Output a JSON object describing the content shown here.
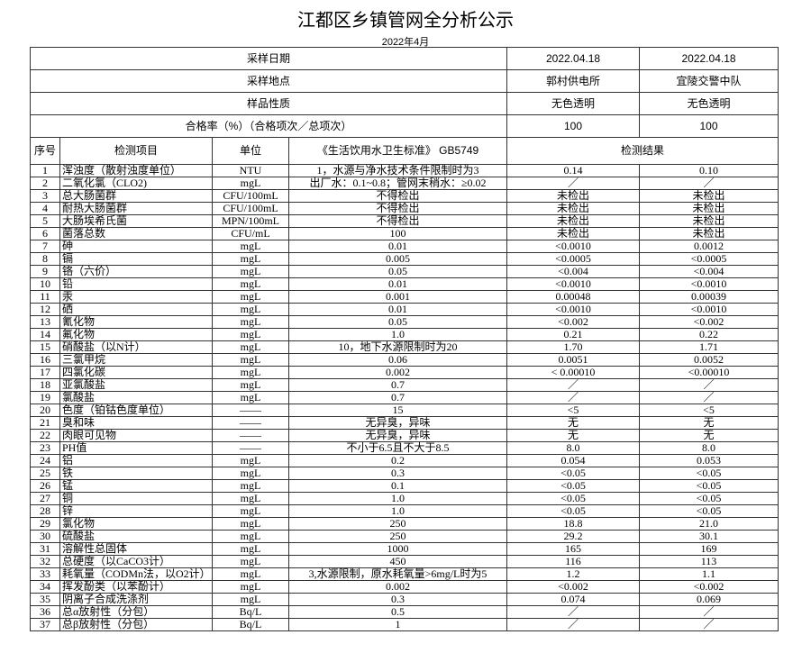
{
  "title": "江都区乡镇管网全分析公示",
  "subtitle": "2022年4月",
  "meta_rows": [
    {
      "label": "采样日期",
      "values": [
        "2022.04.18",
        "2022.04.18"
      ]
    },
    {
      "label": "采样地点",
      "values": [
        "郭村供电所",
        "宜陵交警中队"
      ]
    },
    {
      "label": "样品性质",
      "values": [
        "无色透明",
        "无色透明"
      ]
    },
    {
      "label": "合格率（%）（合格项次／总项次）",
      "values": [
        "100",
        "100"
      ]
    }
  ],
  "columns": {
    "seq": "序号",
    "item": "检测项目",
    "unit": "单位",
    "standard": "《生活饮用水卫生标准》 GB5749",
    "results": "检测结果"
  },
  "rows": [
    [
      "1",
      "浑浊度（散射浊度单位）",
      "NTU",
      "1，水源与净水技术条件限制时为3",
      "0.14",
      "0.10"
    ],
    [
      "2",
      "二氧化氯（CLO2)",
      "mgL",
      "出厂水：0.1~0.8；管网末稍水：≥0.02",
      "／",
      "／"
    ],
    [
      "3",
      "总大肠菌群",
      "CFU/100mL",
      "不得检出",
      "未检出",
      "未检出"
    ],
    [
      "4",
      "耐热大肠菌群",
      "CFU/100mL",
      "不得检出",
      "未检出",
      "未检出"
    ],
    [
      "5",
      "大肠埃希氏菌",
      "MPN/100mL",
      "不得检出",
      "未检出",
      "未检出"
    ],
    [
      "6",
      "菌落总数",
      "CFU/mL",
      "100",
      "未检出",
      "未检出"
    ],
    [
      "7",
      "砷",
      "mgL",
      "0.01",
      "<0.0010",
      "0.0012"
    ],
    [
      "8",
      "镉",
      "mgL",
      "0.005",
      "<0.0005",
      "<0.0005"
    ],
    [
      "9",
      "铬（六价）",
      "mgL",
      "0.05",
      "<0.004",
      "<0.004"
    ],
    [
      "10",
      "铅",
      "mgL",
      "0.01",
      "<0.0010",
      "<0.0010"
    ],
    [
      "11",
      "汞",
      "mgL",
      "0.001",
      "0.00048",
      "0.00039"
    ],
    [
      "12",
      "硒",
      "mgL",
      "0.01",
      "<0.0010",
      "<0.0010"
    ],
    [
      "13",
      "氰化物",
      "mgL",
      "0.05",
      "<0.002",
      "<0.002"
    ],
    [
      "14",
      "氟化物",
      "mgL",
      "1.0",
      "0.21",
      "0.22"
    ],
    [
      "15",
      "硝酸盐（以N计）",
      "mgL",
      "10，地下水源限制时为20",
      "1.70",
      "1.71"
    ],
    [
      "16",
      "三氯甲烷",
      "mgL",
      "0.06",
      "0.0051",
      "0.0052"
    ],
    [
      "17",
      "四氯化碳",
      "mgL",
      "0.002",
      "< 0.00010",
      "<0.00010"
    ],
    [
      "18",
      "亚氯酸盐",
      "mgL",
      "0.7",
      "／",
      "／"
    ],
    [
      "19",
      "氯酸盐",
      "mgL",
      "0.7",
      "／",
      "／"
    ],
    [
      "20",
      "色度（铂钴色度单位）",
      "——",
      "15",
      "<5",
      "<5"
    ],
    [
      "21",
      "臭和味",
      "——",
      "无异臭，异味",
      "无",
      "无"
    ],
    [
      "22",
      "肉眼可见物",
      "——",
      "无异臭，异味",
      "无",
      "无"
    ],
    [
      "23",
      "PH值",
      "——",
      "不小于6.5且不大于8.5",
      "8.0",
      "8.0"
    ],
    [
      "24",
      "铝",
      "mgL",
      "0.2",
      "0.054",
      "0.053"
    ],
    [
      "25",
      "铁",
      "mgL",
      "0.3",
      "<0.05",
      "<0.05"
    ],
    [
      "26",
      "锰",
      "mgL",
      "0.1",
      "<0.05",
      "<0.05"
    ],
    [
      "27",
      "铜",
      "mgL",
      "1.0",
      "<0.05",
      "<0.05"
    ],
    [
      "28",
      "锌",
      "mgL",
      "1.0",
      "<0.05",
      "<0.05"
    ],
    [
      "29",
      "氯化物",
      "mgL",
      "250",
      "18.8",
      "21.0"
    ],
    [
      "30",
      "硫酸盐",
      "mgL",
      "250",
      "29.2",
      "30.1"
    ],
    [
      "31",
      "溶解性总固体",
      "mgL",
      "1000",
      "165",
      "169"
    ],
    [
      "32",
      "总硬度（以CaCO3计）",
      "mgL",
      "450",
      "116",
      "113"
    ],
    [
      "33",
      "耗氧量（CODMn法，以O2计）",
      "mgL",
      "3,水源限制，原水耗氧量>6mg/L时为5",
      "1.2",
      "1.1"
    ],
    [
      "34",
      "挥发酚类（以苯酚计）",
      "mgL",
      "0.002",
      "<0.002",
      "<0.002"
    ],
    [
      "35",
      "阴离子合成洗涤剂",
      "mgL",
      "0.3",
      "0.074",
      "0.069"
    ],
    [
      "36",
      "总α放射性（分包）",
      "Bq/L",
      "0.5",
      "／",
      "／"
    ],
    [
      "37",
      "总β放射性（分包）",
      "Bq/L",
      "1",
      "／",
      "／"
    ]
  ]
}
